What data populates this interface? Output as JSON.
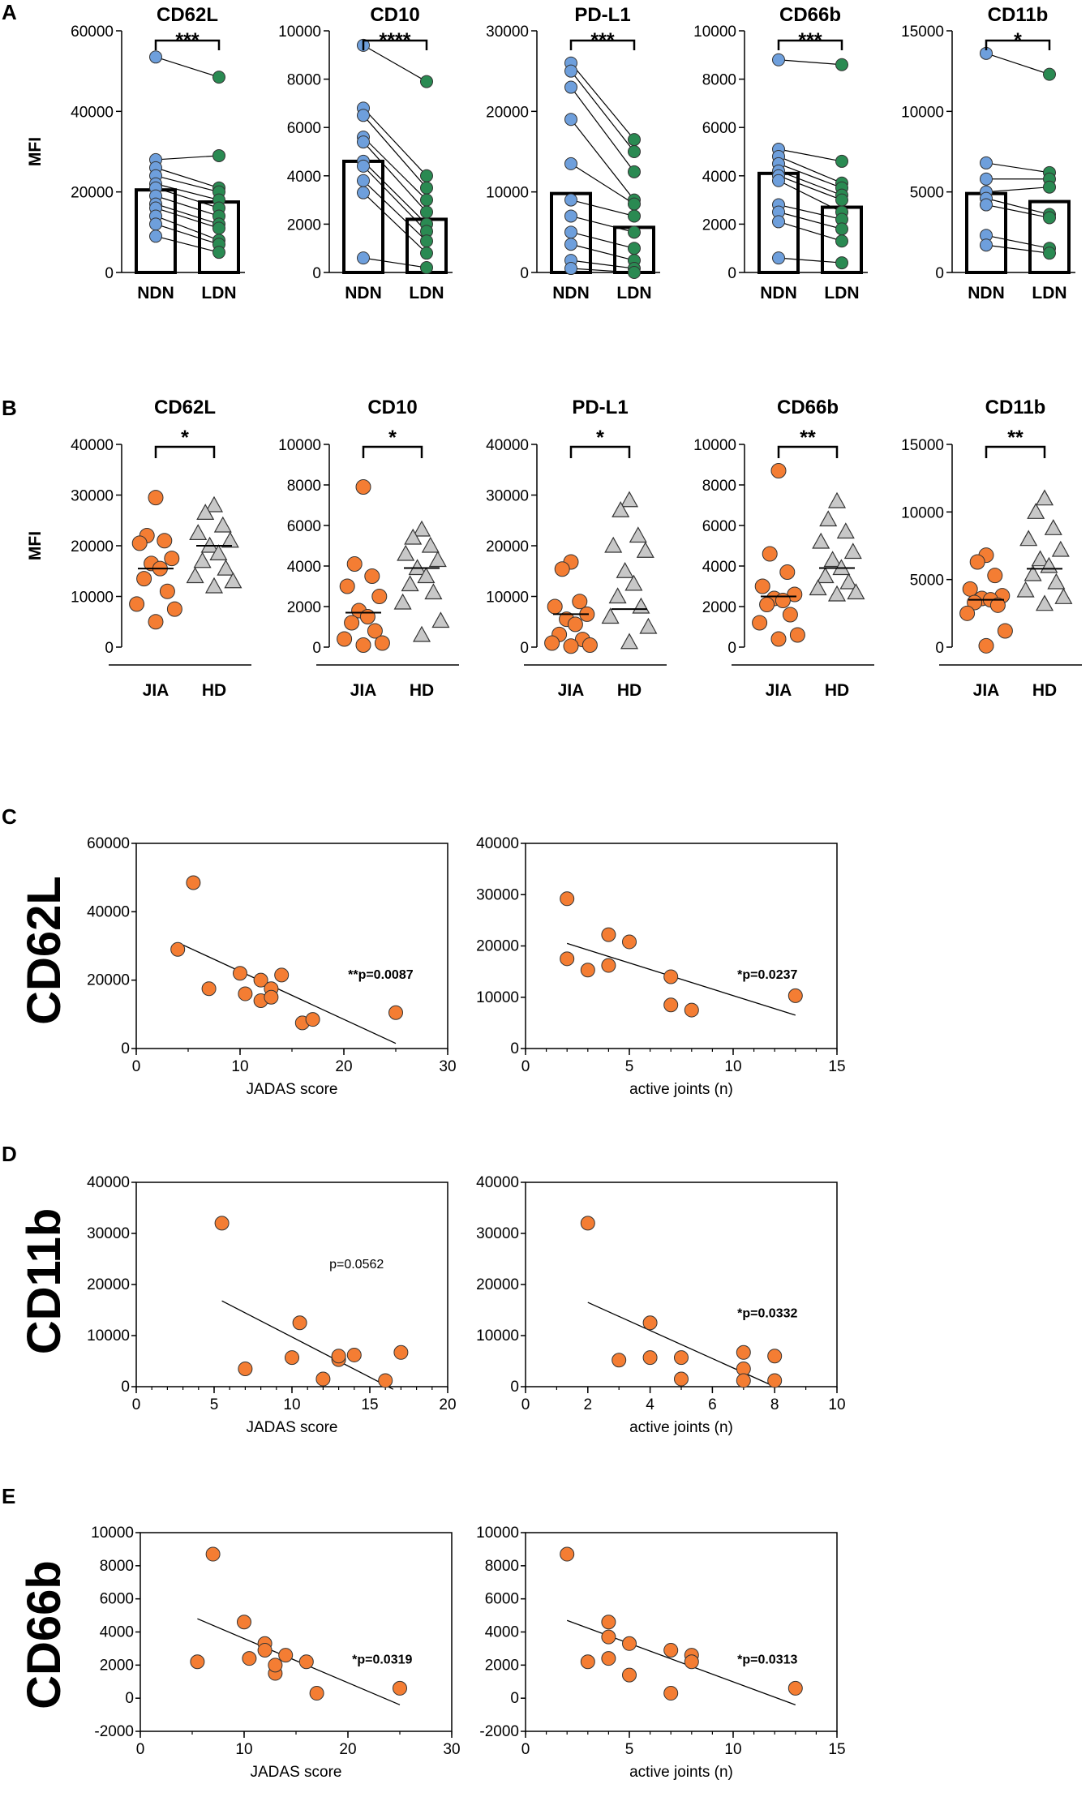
{
  "colors": {
    "ndn": "#6e9fdc",
    "ldn": "#2a8a52",
    "jia": "#f47d33",
    "hd": "#c8c8c8",
    "line": "#000000"
  },
  "panel_labels": {
    "A": "A",
    "B": "B",
    "C": "C",
    "D": "D",
    "E": "E"
  },
  "row_titles": {
    "C": "CD62L",
    "D": "CD11b",
    "E": "CD66b"
  },
  "chart_data": [
    {
      "id": "A1",
      "panel": "A",
      "type": "bar",
      "title": "CD62L",
      "ylabel": "MFI",
      "categories": [
        "NDN",
        "LDN"
      ],
      "means": [
        20500,
        17500
      ],
      "significance": "***",
      "ylim": [
        0,
        60000
      ],
      "yticks": [
        0,
        20000,
        40000,
        60000
      ],
      "ytick_labels": [
        "0",
        "20000",
        "40000",
        "60000"
      ],
      "paired": [
        [
          53500,
          48500
        ],
        [
          28000,
          29000
        ],
        [
          26000,
          21000
        ],
        [
          24000,
          20000
        ],
        [
          22000,
          18000
        ],
        [
          21000,
          16000
        ],
        [
          19000,
          14000
        ],
        [
          17000,
          12000
        ],
        [
          16000,
          11000
        ],
        [
          14000,
          8000
        ],
        [
          12000,
          7000
        ],
        [
          9000,
          5000
        ]
      ]
    },
    {
      "id": "A2",
      "panel": "A",
      "type": "bar",
      "title": "CD10",
      "ylabel": "",
      "categories": [
        "NDN",
        "LDN"
      ],
      "means": [
        4600,
        2200
      ],
      "significance": "****",
      "ylim": [
        0,
        10000
      ],
      "yticks": [
        0,
        2000,
        4000,
        6000,
        8000,
        10000
      ],
      "ytick_labels": [
        "0",
        "2000",
        "4000",
        "6000",
        "8000",
        "10000"
      ],
      "paired": [
        [
          9400,
          7900
        ],
        [
          6800,
          4000
        ],
        [
          6500,
          3500
        ],
        [
          5600,
          3000
        ],
        [
          5400,
          2500
        ],
        [
          4600,
          2000
        ],
        [
          4400,
          1700
        ],
        [
          3800,
          1300
        ],
        [
          3300,
          800
        ],
        [
          600,
          200
        ]
      ]
    },
    {
      "id": "A3",
      "panel": "A",
      "type": "bar",
      "title": "PD-L1",
      "ylabel": "",
      "categories": [
        "NDN",
        "LDN"
      ],
      "means": [
        9800,
        5600
      ],
      "significance": "***",
      "ylim": [
        0,
        30000
      ],
      "yticks": [
        0,
        10000,
        20000,
        30000
      ],
      "ytick_labels": [
        "0",
        "10000",
        "20000",
        "30000"
      ],
      "paired": [
        [
          26000,
          16500
        ],
        [
          25000,
          15000
        ],
        [
          23000,
          12500
        ],
        [
          19000,
          9000
        ],
        [
          13500,
          8500
        ],
        [
          9000,
          7000
        ],
        [
          7000,
          5000
        ],
        [
          5000,
          3000
        ],
        [
          3500,
          1500
        ],
        [
          1500,
          500
        ],
        [
          500,
          0
        ]
      ]
    },
    {
      "id": "A4",
      "panel": "A",
      "type": "bar",
      "title": "CD66b",
      "ylabel": "",
      "categories": [
        "NDN",
        "LDN"
      ],
      "means": [
        4100,
        2700
      ],
      "significance": "***",
      "ylim": [
        0,
        10000
      ],
      "yticks": [
        0,
        2000,
        4000,
        6000,
        8000,
        10000
      ],
      "ytick_labels": [
        "0",
        "2000",
        "4000",
        "6000",
        "8000",
        "10000"
      ],
      "paired": [
        [
          8800,
          8600
        ],
        [
          5100,
          4600
        ],
        [
          4800,
          3700
        ],
        [
          4500,
          3500
        ],
        [
          4200,
          3200
        ],
        [
          4000,
          3000
        ],
        [
          3800,
          2500
        ],
        [
          2800,
          2200
        ],
        [
          2500,
          1800
        ],
        [
          2100,
          1300
        ],
        [
          600,
          400
        ]
      ]
    },
    {
      "id": "A5",
      "panel": "A",
      "type": "bar",
      "title": "CD11b",
      "ylabel": "",
      "categories": [
        "NDN",
        "LDN"
      ],
      "means": [
        4900,
        4400
      ],
      "significance": "*",
      "ylim": [
        0,
        15000
      ],
      "yticks": [
        0,
        5000,
        10000,
        15000
      ],
      "ytick_labels": [
        "0",
        "5000",
        "10000",
        "15000"
      ],
      "paired": [
        [
          13600,
          12300
        ],
        [
          6800,
          6200
        ],
        [
          5800,
          5800
        ],
        [
          5000,
          5300
        ],
        [
          4600,
          3600
        ],
        [
          4200,
          3400
        ],
        [
          2300,
          1500
        ],
        [
          1700,
          1200
        ]
      ]
    },
    {
      "id": "B1",
      "panel": "B",
      "type": "scatter",
      "title": "CD62L",
      "ylabel": "MFI",
      "categories": [
        "JIA",
        "HD"
      ],
      "medians": [
        15500,
        20000
      ],
      "significance": "*",
      "ylim": [
        0,
        40000
      ],
      "yticks": [
        0,
        10000,
        20000,
        30000,
        40000
      ],
      "ytick_labels": [
        "0",
        "10000",
        "20000",
        "30000",
        "40000"
      ],
      "groups": [
        [
          29500,
          22000,
          21000,
          20500,
          17500,
          16500,
          15500,
          13500,
          11000,
          8500,
          7500,
          5000
        ],
        [
          28000,
          26500,
          24000,
          22500,
          21000,
          20000,
          18500,
          17000,
          15500,
          14000,
          13000,
          12000
        ]
      ]
    },
    {
      "id": "B2",
      "panel": "B",
      "type": "scatter",
      "title": "CD10",
      "ylabel": "",
      "categories": [
        "JIA",
        "HD"
      ],
      "medians": [
        1700,
        3900
      ],
      "significance": "*",
      "ylim": [
        0,
        10000
      ],
      "yticks": [
        0,
        2000,
        4000,
        6000,
        8000,
        10000
      ],
      "ytick_labels": [
        "0",
        "2000",
        "4000",
        "6000",
        "8000",
        "10000"
      ],
      "groups": [
        [
          7900,
          4100,
          3500,
          3000,
          2500,
          1800,
          1500,
          1200,
          800,
          400,
          200,
          100
        ],
        [
          5800,
          5400,
          5000,
          4600,
          4300,
          3900,
          3500,
          3100,
          2700,
          2200,
          1300,
          600
        ]
      ]
    },
    {
      "id": "B3",
      "panel": "B",
      "type": "scatter",
      "title": "PD-L1",
      "ylabel": "",
      "categories": [
        "JIA",
        "HD"
      ],
      "medians": [
        6500,
        7500
      ],
      "significance": "*",
      "ylim": [
        0,
        40000
      ],
      "yticks": [
        0,
        10000,
        20000,
        30000,
        40000
      ],
      "ytick_labels": [
        "0",
        "10000",
        "20000",
        "30000",
        "40000"
      ],
      "groups": [
        [
          16800,
          15400,
          9000,
          8000,
          6500,
          5500,
          4500,
          2500,
          1500,
          800,
          400,
          200
        ],
        [
          29000,
          27000,
          22000,
          20000,
          19000,
          15000,
          12500,
          10000,
          8000,
          6000,
          4000,
          1000
        ]
      ]
    },
    {
      "id": "B4",
      "panel": "B",
      "type": "scatter",
      "title": "CD66b",
      "ylabel": "",
      "categories": [
        "JIA",
        "HD"
      ],
      "medians": [
        2500,
        3900
      ],
      "significance": "**",
      "ylim": [
        0,
        10000
      ],
      "yticks": [
        0,
        2000,
        4000,
        6000,
        8000,
        10000
      ],
      "ytick_labels": [
        "0",
        "2000",
        "4000",
        "6000",
        "8000",
        "10000"
      ],
      "groups": [
        [
          8700,
          4600,
          3700,
          3000,
          2600,
          2400,
          2300,
          2100,
          1600,
          1200,
          600,
          400
        ],
        [
          7200,
          6300,
          5700,
          5200,
          4700,
          4300,
          3900,
          3500,
          3200,
          2900,
          2700,
          2600
        ]
      ]
    },
    {
      "id": "B5",
      "panel": "B",
      "type": "scatter",
      "title": "CD11b",
      "ylabel": "",
      "categories": [
        "JIA",
        "HD"
      ],
      "medians": [
        3500,
        5800
      ],
      "significance": "**",
      "ylim": [
        0,
        15000
      ],
      "yticks": [
        0,
        5000,
        10000,
        15000
      ],
      "ytick_labels": [
        "0",
        "5000",
        "10000",
        "15000"
      ],
      "groups": [
        [
          6800,
          6300,
          5300,
          4300,
          3800,
          3600,
          3500,
          3300,
          3100,
          2500,
          1200,
          100
        ],
        [
          11000,
          10000,
          8800,
          8000,
          7200,
          6500,
          6000,
          5400,
          4800,
          4200,
          3700,
          3200
        ]
      ]
    },
    {
      "id": "C1",
      "panel": "C",
      "type": "scatter",
      "xlabel": "JADAS score",
      "xlim": [
        0,
        30
      ],
      "xticks": [
        0,
        10,
        20,
        30
      ],
      "xtick_labels": [
        "0",
        "10",
        "20",
        "30"
      ],
      "xminor": 5,
      "ylim": [
        0,
        60000
      ],
      "yticks": [
        0,
        20000,
        40000,
        60000
      ],
      "ytick_labels": [
        "0",
        "20000",
        "40000",
        "60000"
      ],
      "x": [
        4,
        5.5,
        7,
        10,
        10.5,
        12,
        12,
        13,
        13,
        14,
        16,
        17,
        25
      ],
      "y": [
        29000,
        48500,
        17500,
        22000,
        16000,
        20000,
        14000,
        17500,
        15000,
        21500,
        7500,
        8500,
        10500
      ],
      "fit": [
        [
          4,
          31000
        ],
        [
          25,
          1500
        ]
      ],
      "annotation": "**p=0.0087",
      "annotation_bold": true
    },
    {
      "id": "C2",
      "panel": "C",
      "type": "scatter",
      "xlabel": "active joints (n)",
      "xlim": [
        0,
        15
      ],
      "xticks": [
        0,
        5,
        10,
        15
      ],
      "xtick_labels": [
        "0",
        "5",
        "10",
        "15"
      ],
      "xminor": 1,
      "ylim": [
        0,
        40000
      ],
      "yticks": [
        0,
        10000,
        20000,
        30000,
        40000
      ],
      "ytick_labels": [
        "0",
        "10000",
        "20000",
        "30000",
        "40000"
      ],
      "x": [
        2,
        2,
        3,
        4,
        4,
        5,
        7,
        7,
        8,
        13
      ],
      "y": [
        29200,
        17500,
        15300,
        22200,
        16200,
        20800,
        14000,
        8500,
        7500,
        10300
      ],
      "fit": [
        [
          2,
          20500
        ],
        [
          13,
          6500
        ]
      ],
      "annotation": "*p=0.0237",
      "annotation_bold": true
    },
    {
      "id": "D1",
      "panel": "D",
      "type": "scatter",
      "xlabel": "JADAS score",
      "xlim": [
        0,
        20
      ],
      "xticks": [
        0,
        5,
        10,
        15,
        20
      ],
      "xtick_labels": [
        "0",
        "5",
        "10",
        "15",
        "20"
      ],
      "xminor": 1,
      "ylim": [
        0,
        40000
      ],
      "yticks": [
        0,
        10000,
        20000,
        30000,
        40000
      ],
      "ytick_labels": [
        "0",
        "10000",
        "20000",
        "30000",
        "40000"
      ],
      "x": [
        5.5,
        7,
        10,
        10.5,
        12,
        13,
        13,
        14,
        16,
        17
      ],
      "y": [
        32000,
        3500,
        5700,
        12500,
        1500,
        5300,
        6000,
        6200,
        1200,
        6700
      ],
      "fit": [
        [
          5.5,
          16800
        ],
        [
          16.5,
          -500
        ]
      ],
      "annotation": "p=0.0562",
      "annotation_bold": false
    },
    {
      "id": "D2",
      "panel": "D",
      "type": "scatter",
      "xlabel": "active joints (n)",
      "xlim": [
        0,
        10
      ],
      "xticks": [
        0,
        2,
        4,
        6,
        8,
        10
      ],
      "xtick_labels": [
        "0",
        "2",
        "4",
        "6",
        "8",
        "10"
      ],
      "xminor": 1,
      "ylim": [
        0,
        40000
      ],
      "yticks": [
        0,
        10000,
        20000,
        30000,
        40000
      ],
      "ytick_labels": [
        "0",
        "10000",
        "20000",
        "30000",
        "40000"
      ],
      "x": [
        2,
        3,
        4,
        4,
        5,
        5,
        7,
        7,
        7,
        8,
        8
      ],
      "y": [
        32000,
        5200,
        12500,
        5700,
        5700,
        1500,
        6700,
        3500,
        1200,
        6000,
        1200
      ],
      "fit": [
        [
          2,
          16500
        ],
        [
          8,
          0
        ]
      ],
      "annotation": "*p=0.0332",
      "annotation_bold": true
    },
    {
      "id": "E1",
      "panel": "E",
      "type": "scatter",
      "xlabel": "JADAS score",
      "xlim": [
        0,
        30
      ],
      "xticks": [
        0,
        10,
        20,
        30
      ],
      "xtick_labels": [
        "0",
        "10",
        "20",
        "30"
      ],
      "xminor": 5,
      "ylim": [
        -2000,
        10000
      ],
      "yticks": [
        -2000,
        0,
        2000,
        4000,
        6000,
        8000,
        10000
      ],
      "ytick_labels": [
        "-2000",
        "0",
        "2000",
        "4000",
        "6000",
        "8000",
        "10000"
      ],
      "x": [
        5.5,
        7,
        10,
        10.5,
        12,
        12,
        13,
        13,
        14,
        16,
        17,
        25
      ],
      "y": [
        2200,
        8700,
        4600,
        2400,
        3300,
        2900,
        1500,
        2000,
        2600,
        2200,
        300,
        600
      ],
      "fit": [
        [
          5.5,
          4800
        ],
        [
          25,
          -400
        ]
      ],
      "annotation": "*p=0.0319",
      "annotation_bold": true
    },
    {
      "id": "E2",
      "panel": "E",
      "type": "scatter",
      "xlabel": "active joints (n)",
      "xlim": [
        0,
        15
      ],
      "xticks": [
        0,
        5,
        10,
        15
      ],
      "xtick_labels": [
        "0",
        "5",
        "10",
        "15"
      ],
      "xminor": 1,
      "ylim": [
        -2000,
        10000
      ],
      "yticks": [
        -2000,
        0,
        2000,
        4000,
        6000,
        8000,
        10000
      ],
      "ytick_labels": [
        "-2000",
        "0",
        "2000",
        "4000",
        "6000",
        "8000",
        "10000"
      ],
      "x": [
        2,
        3,
        4,
        4,
        4,
        5,
        5,
        7,
        7,
        8,
        8,
        13
      ],
      "y": [
        8700,
        2200,
        4600,
        3700,
        2400,
        3300,
        1400,
        2900,
        300,
        2600,
        2200,
        600
      ],
      "fit": [
        [
          2,
          4700
        ],
        [
          13,
          -400
        ]
      ],
      "annotation": "*p=0.0313",
      "annotation_bold": true
    }
  ]
}
